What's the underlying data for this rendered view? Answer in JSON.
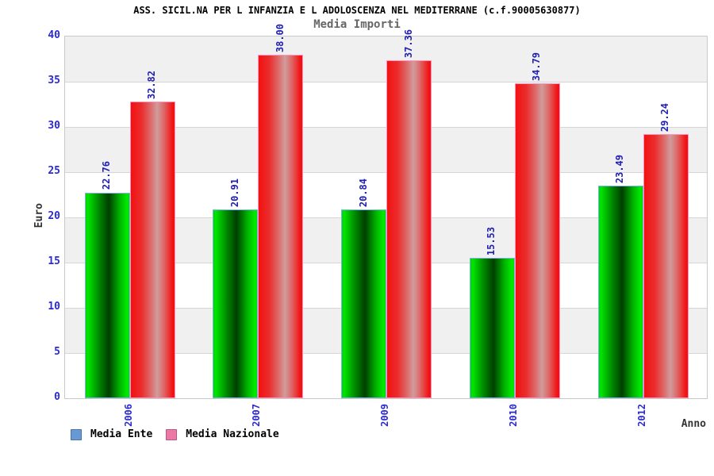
{
  "header": {
    "title": "ASS. SICIL.NA PER L INFANZIA E L ADOLOSCENZA NEL MEDITERRANE (c.f.90005630877)",
    "subtitle": "Media Importi"
  },
  "axes": {
    "y_label": "Euro",
    "x_label": "Anno"
  },
  "legend": {
    "items": [
      {
        "label": "Media Ente",
        "swatch_color": "#6899d6",
        "swatch_border": "#4477aa"
      },
      {
        "label": "Media Nazionale",
        "swatch_color": "#eb78a5",
        "swatch_border": "#c05585"
      }
    ]
  },
  "colors": {
    "tick_text": "#2a2ad2",
    "value_text": "#2020b2",
    "band_gray": "#f0f0f0",
    "gridline": "#d6d6d6",
    "plot_border": "#c9c9c9",
    "green_bar_border": "#7fb2e8",
    "red_bar_border": "#ff93be"
  },
  "chart_data": {
    "type": "bar",
    "title": "ASS. SICIL.NA PER L INFANZIA E L ADOLOSCENZA NEL MEDITERRANE (c.f.90005630877)",
    "subtitle": "Media Importi",
    "xlabel": "Anno",
    "ylabel": "Euro",
    "ylim": [
      0,
      40
    ],
    "y_ticks": [
      0,
      5,
      10,
      15,
      20,
      25,
      30,
      35,
      40
    ],
    "categories": [
      "2006",
      "2007",
      "2009",
      "2010",
      "2012"
    ],
    "series": [
      {
        "name": "Media Ente",
        "style": "green-cylinder",
        "values": [
          22.76,
          20.91,
          20.84,
          15.53,
          23.49
        ]
      },
      {
        "name": "Media Nazionale",
        "style": "red-cylinder",
        "values": [
          32.82,
          38.0,
          37.36,
          34.79,
          29.24
        ]
      }
    ],
    "value_label_decimals": 2,
    "value_labels_rotated": true,
    "x_labels_rotated": true,
    "grid": "horizontal lines every 5 units, alternating gray/white bands",
    "legend_position": "bottom-left"
  }
}
